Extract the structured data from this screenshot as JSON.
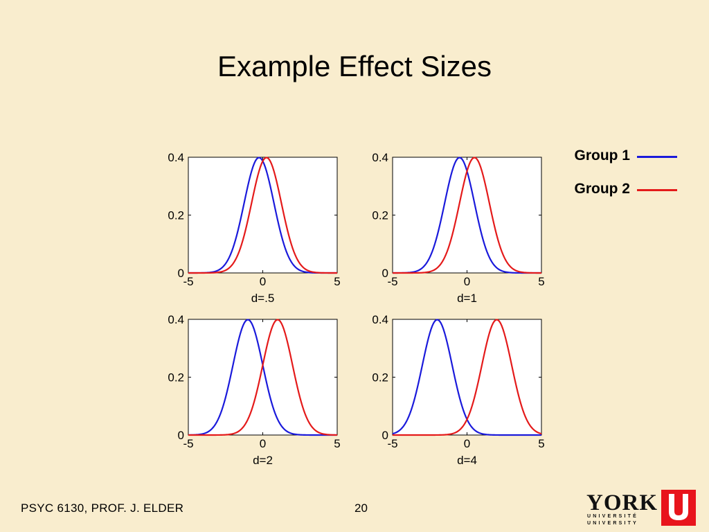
{
  "slide": {
    "title": "Example Effect Sizes",
    "footer_course": "PSYC 6130, PROF. J. ELDER",
    "page_number": "20"
  },
  "logo": {
    "text": "YORK",
    "sub1": "UNIVERSITÉ",
    "sub2": "UNIVERSITY",
    "accent_color": "#e8141c"
  },
  "legend": [
    {
      "label": "Group 1",
      "color": "#1a1adb"
    },
    {
      "label": "Group 2",
      "color": "#e41a1a"
    }
  ],
  "chart_data": [
    {
      "type": "line",
      "xlabel": "d=.5",
      "xlim": [
        -5,
        5
      ],
      "ylim": [
        0,
        0.4
      ],
      "xticks": [
        "-5",
        "0",
        "5"
      ],
      "yticks": [
        "0",
        "0.2",
        "0.4"
      ],
      "series": [
        {
          "name": "Group 1",
          "mean": -0.25,
          "sd": 1
        },
        {
          "name": "Group 2",
          "mean": 0.25,
          "sd": 1
        }
      ]
    },
    {
      "type": "line",
      "xlabel": "d=1",
      "xlim": [
        -5,
        5
      ],
      "ylim": [
        0,
        0.4
      ],
      "xticks": [
        "-5",
        "0",
        "5"
      ],
      "yticks": [
        "0",
        "0.2",
        "0.4"
      ],
      "series": [
        {
          "name": "Group 1",
          "mean": -0.5,
          "sd": 1
        },
        {
          "name": "Group 2",
          "mean": 0.5,
          "sd": 1
        }
      ]
    },
    {
      "type": "line",
      "xlabel": "d=2",
      "xlim": [
        -5,
        5
      ],
      "ylim": [
        0,
        0.4
      ],
      "xticks": [
        "-5",
        "0",
        "5"
      ],
      "yticks": [
        "0",
        "0.2",
        "0.4"
      ],
      "series": [
        {
          "name": "Group 1",
          "mean": -1,
          "sd": 1
        },
        {
          "name": "Group 2",
          "mean": 1,
          "sd": 1
        }
      ]
    },
    {
      "type": "line",
      "xlabel": "d=4",
      "xlim": [
        -5,
        5
      ],
      "ylim": [
        0,
        0.4
      ],
      "xticks": [
        "-5",
        "0",
        "5"
      ],
      "yticks": [
        "0",
        "0.2",
        "0.4"
      ],
      "series": [
        {
          "name": "Group 1",
          "mean": -2,
          "sd": 1
        },
        {
          "name": "Group 2",
          "mean": 2,
          "sd": 1
        }
      ]
    }
  ]
}
